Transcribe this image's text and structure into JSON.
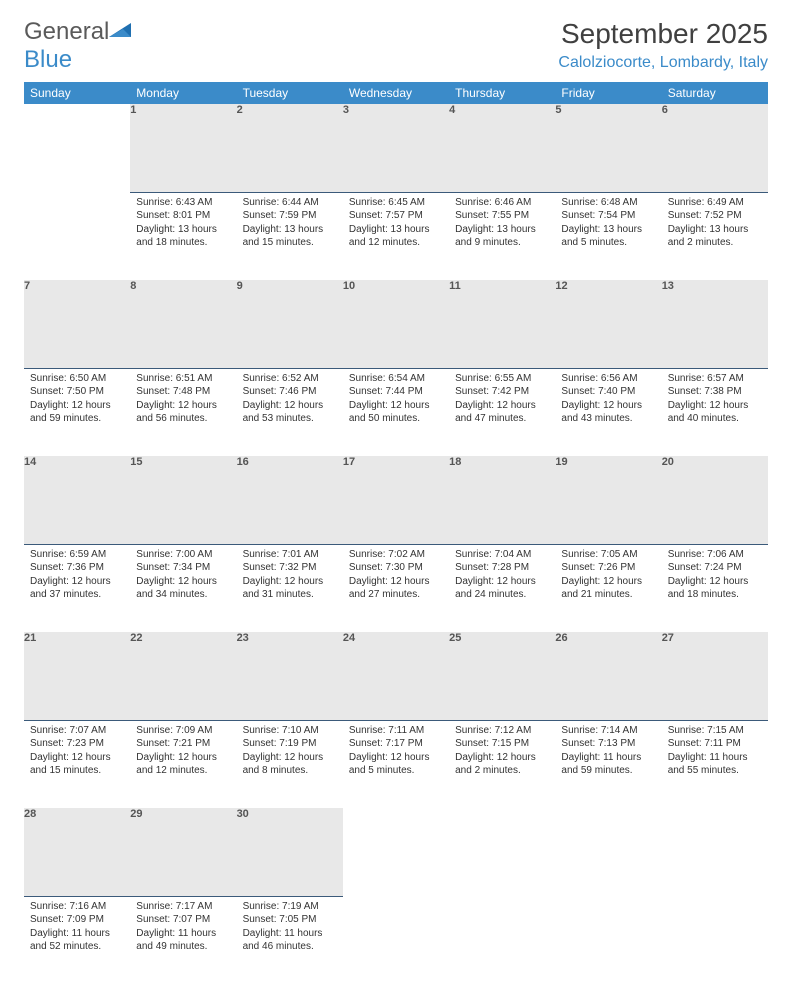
{
  "logo": {
    "general": "General",
    "blue": "Blue"
  },
  "title": "September 2025",
  "location": "Calolziocorte, Lombardy, Italy",
  "colors": {
    "header_bg": "#3b8bc9",
    "header_fg": "#ffffff",
    "daynum_bg": "#e8e8e8",
    "daynum_border": "#3b5a7a",
    "text": "#333333",
    "logo_gray": "#5a5a5a",
    "logo_blue": "#3b8bc9",
    "title_color": "#404040"
  },
  "weekdays": [
    "Sunday",
    "Monday",
    "Tuesday",
    "Wednesday",
    "Thursday",
    "Friday",
    "Saturday"
  ],
  "weeks": [
    [
      null,
      {
        "n": "1",
        "sr": "Sunrise: 6:43 AM",
        "ss": "Sunset: 8:01 PM",
        "d1": "Daylight: 13 hours",
        "d2": "and 18 minutes."
      },
      {
        "n": "2",
        "sr": "Sunrise: 6:44 AM",
        "ss": "Sunset: 7:59 PM",
        "d1": "Daylight: 13 hours",
        "d2": "and 15 minutes."
      },
      {
        "n": "3",
        "sr": "Sunrise: 6:45 AM",
        "ss": "Sunset: 7:57 PM",
        "d1": "Daylight: 13 hours",
        "d2": "and 12 minutes."
      },
      {
        "n": "4",
        "sr": "Sunrise: 6:46 AM",
        "ss": "Sunset: 7:55 PM",
        "d1": "Daylight: 13 hours",
        "d2": "and 9 minutes."
      },
      {
        "n": "5",
        "sr": "Sunrise: 6:48 AM",
        "ss": "Sunset: 7:54 PM",
        "d1": "Daylight: 13 hours",
        "d2": "and 5 minutes."
      },
      {
        "n": "6",
        "sr": "Sunrise: 6:49 AM",
        "ss": "Sunset: 7:52 PM",
        "d1": "Daylight: 13 hours",
        "d2": "and 2 minutes."
      }
    ],
    [
      {
        "n": "7",
        "sr": "Sunrise: 6:50 AM",
        "ss": "Sunset: 7:50 PM",
        "d1": "Daylight: 12 hours",
        "d2": "and 59 minutes."
      },
      {
        "n": "8",
        "sr": "Sunrise: 6:51 AM",
        "ss": "Sunset: 7:48 PM",
        "d1": "Daylight: 12 hours",
        "d2": "and 56 minutes."
      },
      {
        "n": "9",
        "sr": "Sunrise: 6:52 AM",
        "ss": "Sunset: 7:46 PM",
        "d1": "Daylight: 12 hours",
        "d2": "and 53 minutes."
      },
      {
        "n": "10",
        "sr": "Sunrise: 6:54 AM",
        "ss": "Sunset: 7:44 PM",
        "d1": "Daylight: 12 hours",
        "d2": "and 50 minutes."
      },
      {
        "n": "11",
        "sr": "Sunrise: 6:55 AM",
        "ss": "Sunset: 7:42 PM",
        "d1": "Daylight: 12 hours",
        "d2": "and 47 minutes."
      },
      {
        "n": "12",
        "sr": "Sunrise: 6:56 AM",
        "ss": "Sunset: 7:40 PM",
        "d1": "Daylight: 12 hours",
        "d2": "and 43 minutes."
      },
      {
        "n": "13",
        "sr": "Sunrise: 6:57 AM",
        "ss": "Sunset: 7:38 PM",
        "d1": "Daylight: 12 hours",
        "d2": "and 40 minutes."
      }
    ],
    [
      {
        "n": "14",
        "sr": "Sunrise: 6:59 AM",
        "ss": "Sunset: 7:36 PM",
        "d1": "Daylight: 12 hours",
        "d2": "and 37 minutes."
      },
      {
        "n": "15",
        "sr": "Sunrise: 7:00 AM",
        "ss": "Sunset: 7:34 PM",
        "d1": "Daylight: 12 hours",
        "d2": "and 34 minutes."
      },
      {
        "n": "16",
        "sr": "Sunrise: 7:01 AM",
        "ss": "Sunset: 7:32 PM",
        "d1": "Daylight: 12 hours",
        "d2": "and 31 minutes."
      },
      {
        "n": "17",
        "sr": "Sunrise: 7:02 AM",
        "ss": "Sunset: 7:30 PM",
        "d1": "Daylight: 12 hours",
        "d2": "and 27 minutes."
      },
      {
        "n": "18",
        "sr": "Sunrise: 7:04 AM",
        "ss": "Sunset: 7:28 PM",
        "d1": "Daylight: 12 hours",
        "d2": "and 24 minutes."
      },
      {
        "n": "19",
        "sr": "Sunrise: 7:05 AM",
        "ss": "Sunset: 7:26 PM",
        "d1": "Daylight: 12 hours",
        "d2": "and 21 minutes."
      },
      {
        "n": "20",
        "sr": "Sunrise: 7:06 AM",
        "ss": "Sunset: 7:24 PM",
        "d1": "Daylight: 12 hours",
        "d2": "and 18 minutes."
      }
    ],
    [
      {
        "n": "21",
        "sr": "Sunrise: 7:07 AM",
        "ss": "Sunset: 7:23 PM",
        "d1": "Daylight: 12 hours",
        "d2": "and 15 minutes."
      },
      {
        "n": "22",
        "sr": "Sunrise: 7:09 AM",
        "ss": "Sunset: 7:21 PM",
        "d1": "Daylight: 12 hours",
        "d2": "and 12 minutes."
      },
      {
        "n": "23",
        "sr": "Sunrise: 7:10 AM",
        "ss": "Sunset: 7:19 PM",
        "d1": "Daylight: 12 hours",
        "d2": "and 8 minutes."
      },
      {
        "n": "24",
        "sr": "Sunrise: 7:11 AM",
        "ss": "Sunset: 7:17 PM",
        "d1": "Daylight: 12 hours",
        "d2": "and 5 minutes."
      },
      {
        "n": "25",
        "sr": "Sunrise: 7:12 AM",
        "ss": "Sunset: 7:15 PM",
        "d1": "Daylight: 12 hours",
        "d2": "and 2 minutes."
      },
      {
        "n": "26",
        "sr": "Sunrise: 7:14 AM",
        "ss": "Sunset: 7:13 PM",
        "d1": "Daylight: 11 hours",
        "d2": "and 59 minutes."
      },
      {
        "n": "27",
        "sr": "Sunrise: 7:15 AM",
        "ss": "Sunset: 7:11 PM",
        "d1": "Daylight: 11 hours",
        "d2": "and 55 minutes."
      }
    ],
    [
      {
        "n": "28",
        "sr": "Sunrise: 7:16 AM",
        "ss": "Sunset: 7:09 PM",
        "d1": "Daylight: 11 hours",
        "d2": "and 52 minutes."
      },
      {
        "n": "29",
        "sr": "Sunrise: 7:17 AM",
        "ss": "Sunset: 7:07 PM",
        "d1": "Daylight: 11 hours",
        "d2": "and 49 minutes."
      },
      {
        "n": "30",
        "sr": "Sunrise: 7:19 AM",
        "ss": "Sunset: 7:05 PM",
        "d1": "Daylight: 11 hours",
        "d2": "and 46 minutes."
      },
      null,
      null,
      null,
      null
    ]
  ]
}
